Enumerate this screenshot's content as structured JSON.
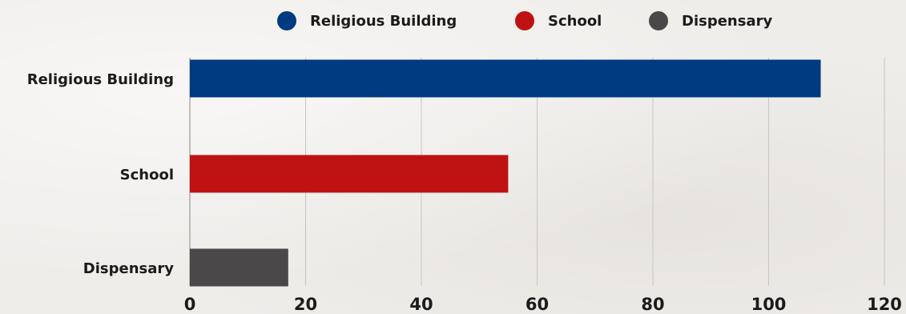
{
  "chart_data": {
    "type": "bar",
    "orientation": "horizontal",
    "categories": [
      "Religious Building",
      "School",
      "Dispensary"
    ],
    "values": [
      109,
      55,
      17
    ],
    "colors": [
      "#003a80",
      "#be1212",
      "#4a4848"
    ],
    "legend": {
      "placement": "top-center",
      "entries": [
        "Religious Building",
        "School",
        "Dispensary"
      ]
    },
    "xlim": [
      0,
      120
    ],
    "xticks": [
      0,
      20,
      40,
      60,
      80,
      100,
      120
    ],
    "grid": "vertical",
    "title": "",
    "xlabel": "",
    "ylabel": ""
  }
}
